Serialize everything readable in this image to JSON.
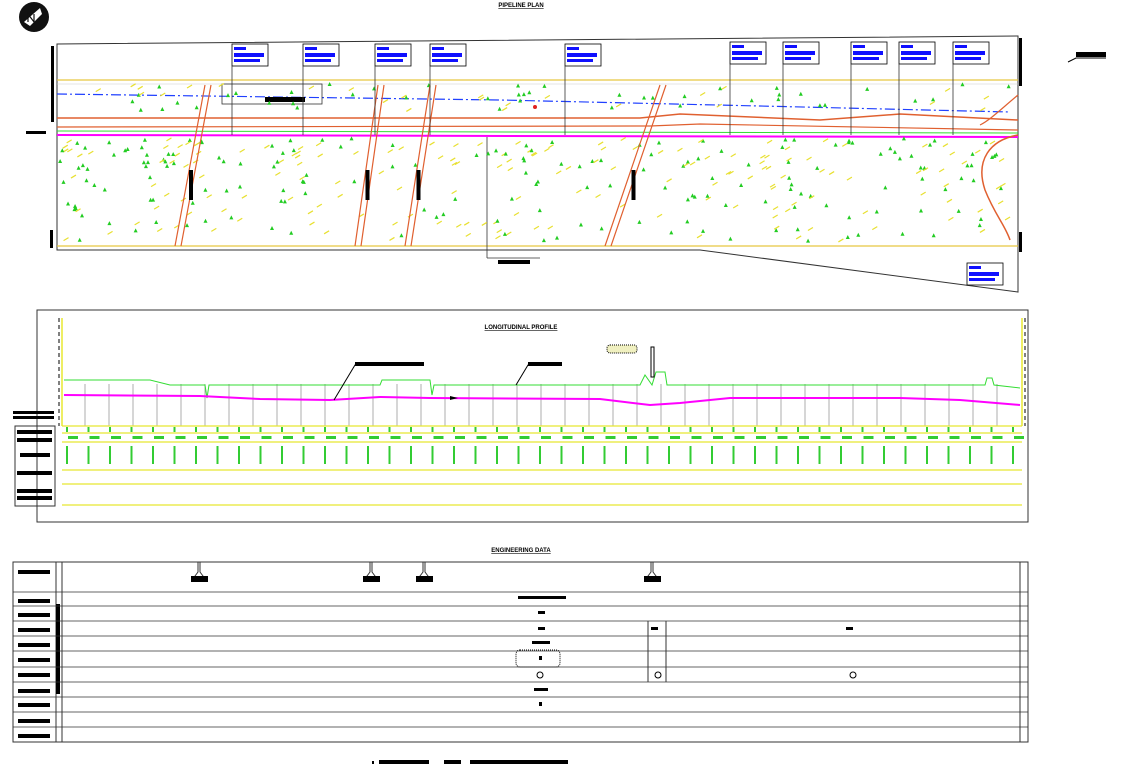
{
  "plan": {
    "title": "PIPELINE PLAN"
  },
  "profile": {
    "title": "LONGITUDINAL PROFILE"
  },
  "engineering": {
    "title": "ENGINEERING DATA"
  },
  "colors": {
    "pipeline": "#ff00ff",
    "ground": "#33dd33",
    "boundary": "#e8c840",
    "road": "#e06030",
    "centerline": "#2040ff",
    "label_box": "#1010ff"
  }
}
